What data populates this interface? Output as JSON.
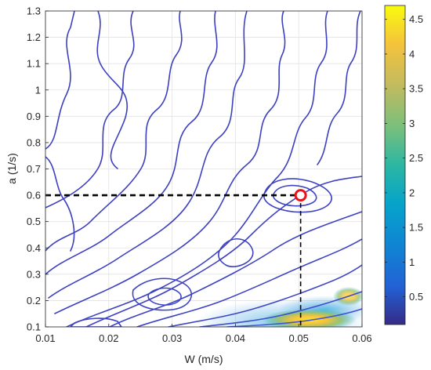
{
  "chart_data": {
    "type": "contour",
    "xlabel": "W (m/s)",
    "ylabel": "a (1/s)",
    "xlim": [
      0.01,
      0.06
    ],
    "ylim": [
      0.1,
      1.3
    ],
    "x_ticks": [
      "0.01",
      "0.02",
      "0.03",
      "0.04",
      "0.05",
      "0.06"
    ],
    "y_ticks": [
      "0.1",
      "0.2",
      "0.3",
      "0.4",
      "0.5",
      "0.6",
      "0.7",
      "0.8",
      "0.9",
      "1",
      "1.1",
      "1.2",
      "1.3"
    ],
    "grid": true,
    "colorbar": {
      "range": [
        0.1,
        4.7
      ],
      "ticks": [
        "0.5",
        "1",
        "1.5",
        "2",
        "2.5",
        "3",
        "3.5",
        "4",
        "4.5"
      ],
      "colormap": "parula"
    },
    "optimum_marker": {
      "x": 0.0503,
      "y": 0.6
    },
    "guide_lines": {
      "x": 0.0503,
      "y": 0.6
    },
    "colors": {
      "marker": "#e8141b",
      "guide": "#000000",
      "low_level": "#3d3fc0",
      "high_level": "#f9e632"
    }
  }
}
